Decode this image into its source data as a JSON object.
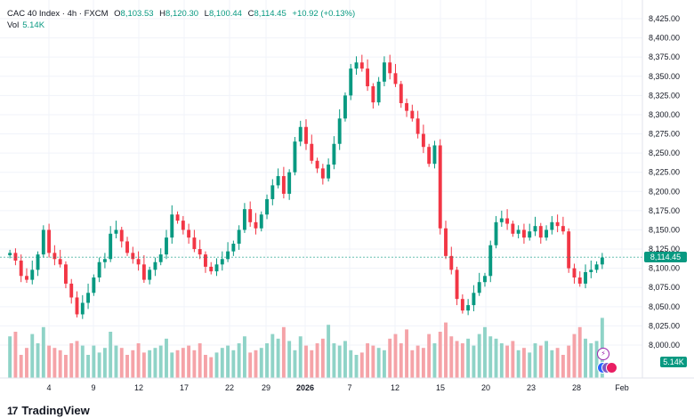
{
  "legend": {
    "symbol": "CAC 40 Index · 4h · FXCM",
    "open_label": "O",
    "open": "8,103.53",
    "high_label": "H",
    "high": "8,120.30",
    "low_label": "L",
    "low": "8,100.44",
    "close_label": "C",
    "close": "8,114.45",
    "change": "+10.92 (+0.13%)"
  },
  "volume": {
    "label": "Vol",
    "value": "5.14K"
  },
  "price_tag": "8,114.45",
  "volume_tag": "5.14K",
  "brand": "TradingView",
  "colors": {
    "up": "#089981",
    "down": "#f23645",
    "up_vol": "#8fd3c7",
    "down_vol": "#f5a3a8"
  },
  "chart_data": {
    "type": "candlestick",
    "title": "CAC 40 Index · 4h · FXCM",
    "y_ticks": [
      "8,425.00",
      "8,400.00",
      "8,375.00",
      "8,350.00",
      "8,325.00",
      "8,300.00",
      "8,275.00",
      "8,250.00",
      "8,225.00",
      "8,200.00",
      "8,175.00",
      "8,150.00",
      "8,125.00",
      "8,100.00",
      "8,075.00",
      "8,050.00",
      "8,025.00",
      "8,000.00"
    ],
    "y_range": [
      7975,
      8435
    ],
    "x_ticks": [
      "4",
      "9",
      "12",
      "17",
      "22",
      "29",
      "2026",
      "7",
      "12",
      "15",
      "20",
      "23",
      "28",
      "Feb"
    ],
    "last_close": 8114.45,
    "close_series": [
      8120,
      8110,
      8090,
      8085,
      8098,
      8118,
      8150,
      8120,
      8112,
      8105,
      8080,
      8062,
      8040,
      8055,
      8068,
      8088,
      8108,
      8112,
      8145,
      8150,
      8135,
      8120,
      8112,
      8105,
      8085,
      8098,
      8108,
      8118,
      8140,
      8170,
      8162,
      8150,
      8140,
      8125,
      8118,
      8102,
      8096,
      8105,
      8112,
      8122,
      8132,
      8150,
      8177,
      8160,
      8152,
      8170,
      8190,
      8208,
      8220,
      8197,
      8225,
      8265,
      8284,
      8262,
      8240,
      8230,
      8217,
      8235,
      8262,
      8295,
      8325,
      8360,
      8368,
      8360,
      8337,
      8316,
      8343,
      8368,
      8354,
      8340,
      8315,
      8305,
      8295,
      8275,
      8258,
      8236,
      8260,
      8152,
      8116,
      8098,
      8060,
      8045,
      8052,
      8068,
      8082,
      8090,
      8130,
      8160,
      8165,
      8158,
      8145,
      8150,
      8140,
      8148,
      8155,
      8140,
      8150,
      8160,
      8155,
      8148,
      8100,
      8088,
      8080,
      8095,
      8098,
      8105,
      8114
    ],
    "volume_series": [
      18,
      20,
      10,
      13,
      19,
      15,
      22,
      14,
      13,
      12,
      10,
      15,
      16,
      14,
      10,
      14,
      11,
      13,
      20,
      14,
      13,
      10,
      12,
      15,
      11,
      12,
      13,
      14,
      17,
      11,
      12,
      13,
      14,
      12,
      15,
      10,
      9,
      11,
      13,
      14,
      12,
      15,
      18,
      11,
      12,
      13,
      15,
      19,
      17,
      22,
      16,
      12,
      18,
      14,
      12,
      15,
      17,
      23,
      15,
      14,
      16,
      12,
      10,
      11,
      15,
      14,
      13,
      12,
      17,
      19,
      15,
      21,
      12,
      14,
      13,
      19,
      15,
      20,
      24,
      18,
      16,
      15,
      17,
      14,
      19,
      22,
      18,
      17,
      15,
      14,
      16,
      12,
      13,
      11,
      15,
      14,
      16,
      12,
      13,
      10,
      14,
      19,
      22,
      17,
      15,
      16,
      26
    ]
  }
}
